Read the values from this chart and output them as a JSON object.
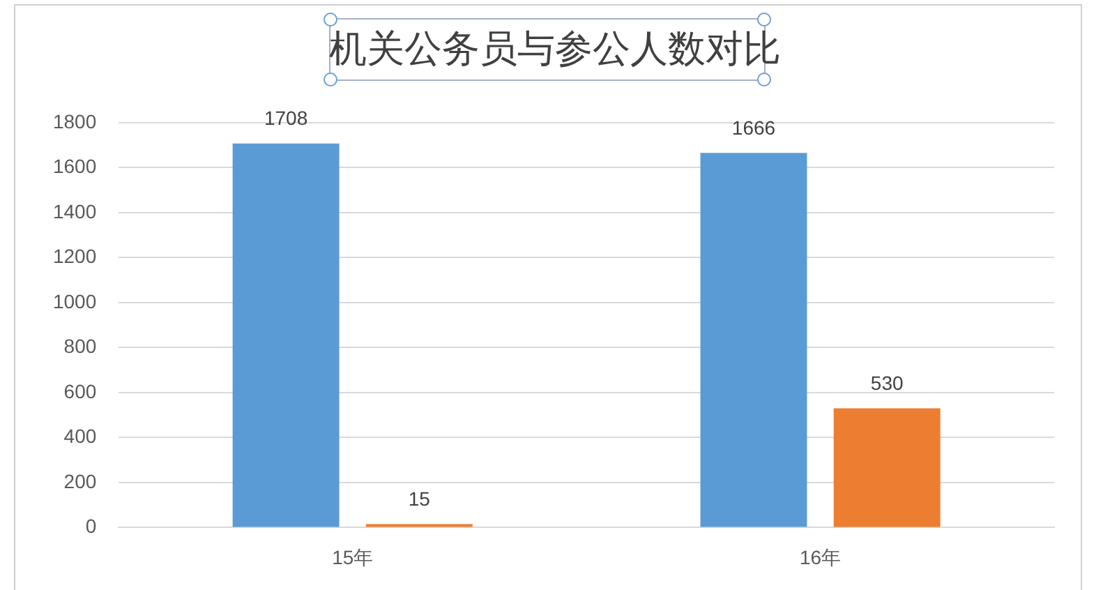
{
  "chart_data": {
    "type": "bar",
    "title": "机关公务员与参公人数对比",
    "categories": [
      "15年",
      "16年"
    ],
    "series": [
      {
        "color": "#5b9bd5",
        "values": [
          1708,
          1666
        ]
      },
      {
        "color": "#ed7d31",
        "values": [
          15,
          530
        ]
      }
    ],
    "ylim": [
      0,
      1800
    ],
    "yticks": [
      0,
      200,
      400,
      600,
      800,
      1000,
      1200,
      1400,
      1600,
      1800
    ],
    "grid": "y",
    "legend": false,
    "data_labels": true
  }
}
